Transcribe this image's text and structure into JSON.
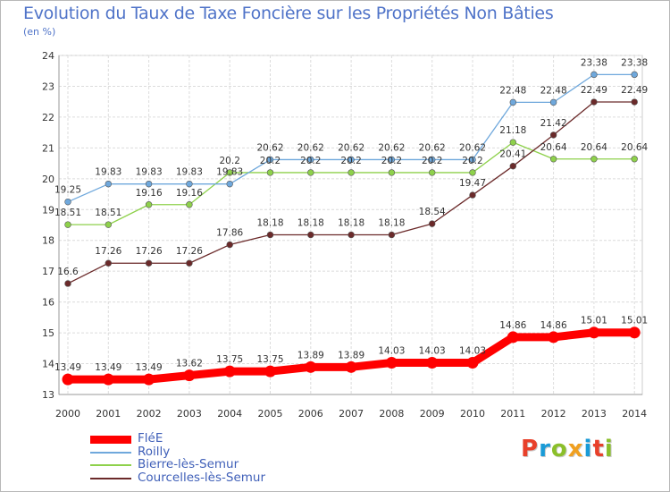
{
  "title": "Evolution du Taux de Taxe Foncière sur les Propriétés Non Bâties",
  "unit_label": "(en %)",
  "brand": {
    "text": "Proxiti",
    "letter_colors": [
      "#e8402a",
      "#1a9bd7",
      "#8bbf2a",
      "#f0a020",
      "#1a9bd7",
      "#e8402a",
      "#8bbf2a"
    ]
  },
  "chart_data": {
    "type": "line",
    "x": [
      "2000",
      "2001",
      "2002",
      "2003",
      "2004",
      "2005",
      "2006",
      "2007",
      "2008",
      "2009",
      "2010",
      "2011",
      "2012",
      "2013",
      "2014"
    ],
    "ylim": [
      13,
      24
    ],
    "yticks": [
      13,
      14,
      15,
      16,
      17,
      18,
      19,
      20,
      21,
      22,
      23,
      24
    ],
    "grid": true,
    "legend_placement": "bottom-left",
    "series": [
      {
        "name": "FléE",
        "color": "#ff0000",
        "values": [
          13.49,
          13.49,
          13.49,
          13.62,
          13.75,
          13.75,
          13.89,
          13.89,
          14.03,
          14.03,
          14.03,
          14.86,
          14.86,
          15.01,
          15.01
        ],
        "labels": [
          "13.49",
          "13.49",
          "13.49",
          "13.62",
          "13.75",
          "13.75",
          "13.89",
          "13.89",
          "14.03",
          "14.03",
          "14.03",
          "14.86",
          "14.86",
          "15.01",
          "15.01"
        ]
      },
      {
        "name": "Roilly",
        "color": "#6fa8dc",
        "values": [
          19.25,
          19.83,
          19.83,
          19.83,
          19.83,
          20.62,
          20.62,
          20.62,
          20.62,
          20.62,
          20.62,
          22.48,
          22.48,
          23.38,
          23.38
        ],
        "labels": [
          "19.25",
          "19.83",
          "19.83",
          "19.83",
          "19.83",
          "20.62",
          "20.62",
          "20.62",
          "20.62",
          "20.62",
          "20.62",
          "22.48",
          "22.48",
          "23.38",
          "23.38"
        ]
      },
      {
        "name": "Bierre-lès-Semur",
        "color": "#8ed14b",
        "values": [
          18.51,
          18.51,
          19.16,
          19.16,
          20.2,
          20.2,
          20.2,
          20.2,
          20.2,
          20.2,
          20.2,
          21.18,
          20.64,
          20.64,
          20.64
        ],
        "labels": [
          "18.51",
          "18.51",
          "19.16",
          "19.16",
          "20.2",
          "20.2",
          "20.2",
          "20.2",
          "20.2",
          "20.2",
          "20.2",
          "21.18",
          "20.64",
          "20.64",
          "20.64"
        ]
      },
      {
        "name": "Courcelles-lès-Semur",
        "color": "#6b2a2a",
        "values": [
          16.6,
          17.26,
          17.26,
          17.26,
          17.86,
          18.18,
          18.18,
          18.18,
          18.18,
          18.54,
          19.47,
          20.41,
          21.42,
          22.49,
          22.49
        ],
        "labels": [
          "16.6",
          "17.26",
          "17.26",
          "17.26",
          "17.86",
          "18.18",
          "18.18",
          "18.18",
          "18.18",
          "18.54",
          "19.47",
          "20.41",
          "21.42",
          "22.49",
          "22.49"
        ]
      }
    ]
  }
}
